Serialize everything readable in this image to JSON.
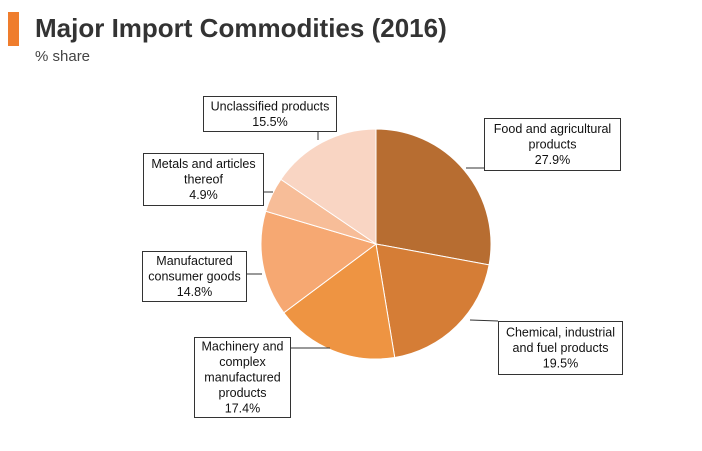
{
  "header": {
    "title": "Major Import Commodities (2016)",
    "subtitle": "% share",
    "accent_color": "#ef7d2d"
  },
  "chart_data": {
    "type": "pie",
    "title": "Major Import Commodities (2016)",
    "subtitle": "% share",
    "slices": [
      {
        "label": [
          "Food and agricultural",
          "products"
        ],
        "value_text": "27.9%",
        "value": 27.9,
        "color": "#b76d31"
      },
      {
        "label": [
          "Chemical, industrial",
          "and fuel products"
        ],
        "value_text": "19.5%",
        "value": 19.5,
        "color": "#d57d36"
      },
      {
        "label": [
          "Machinery and",
          "complex",
          "manufactured",
          "products"
        ],
        "value_text": "17.4%",
        "value": 17.4,
        "color": "#ee9442"
      },
      {
        "label": [
          "Manufactured",
          "consumer goods"
        ],
        "value_text": "14.8%",
        "value": 14.8,
        "color": "#f6a872"
      },
      {
        "label": [
          "Metals and articles",
          "thereof"
        ],
        "value_text": "4.9%",
        "value": 4.9,
        "color": "#f7bd98"
      },
      {
        "label": [
          "Unclassified products"
        ],
        "value_text": "15.5%",
        "value": 15.5,
        "color": "#f9d5c3"
      }
    ]
  }
}
